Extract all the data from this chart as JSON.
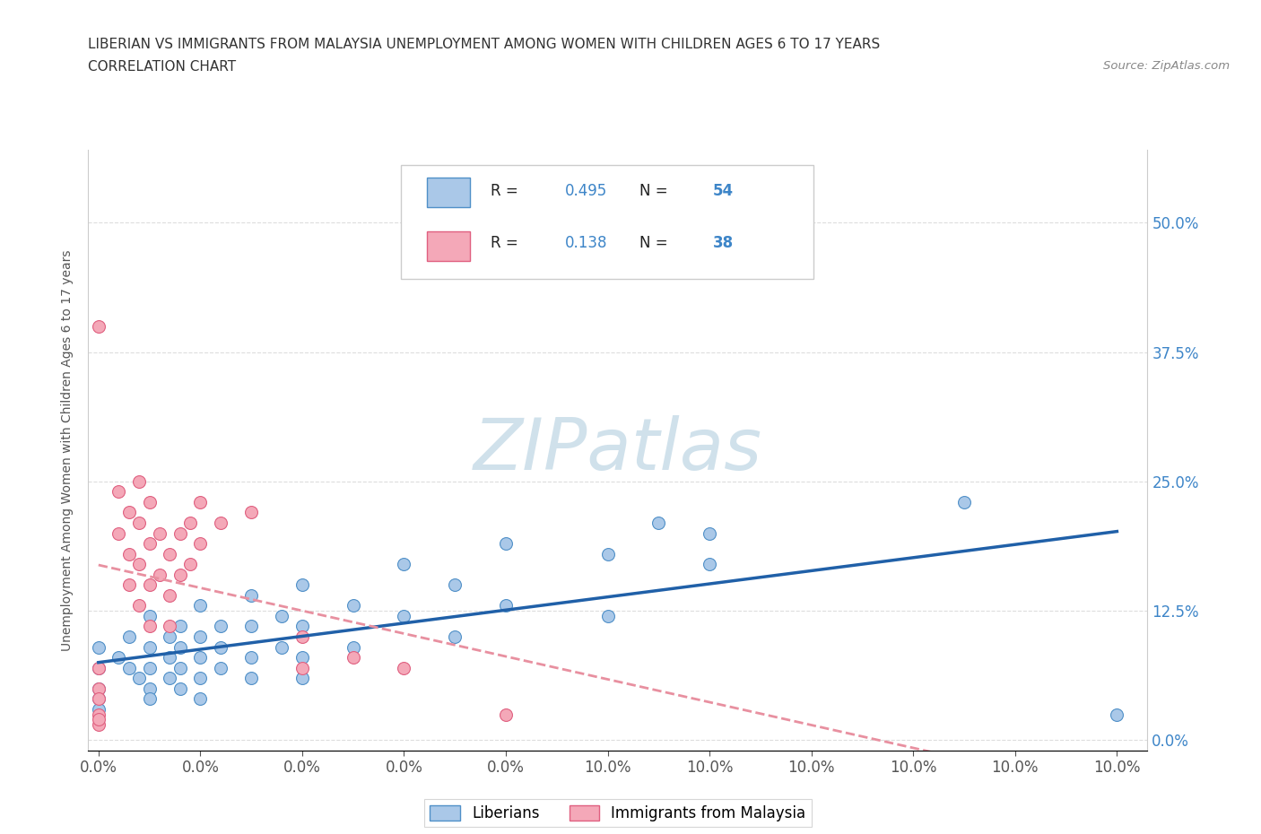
{
  "title_line1": "LIBERIAN VS IMMIGRANTS FROM MALAYSIA UNEMPLOYMENT AMONG WOMEN WITH CHILDREN AGES 6 TO 17 YEARS",
  "title_line2": "CORRELATION CHART",
  "source_text": "Source: ZipAtlas.com",
  "ylabel": "Unemployment Among Women with Children Ages 6 to 17 years",
  "xlim": [
    -0.001,
    0.103
  ],
  "ylim": [
    -0.01,
    0.57
  ],
  "yticks": [
    0.0,
    0.125,
    0.25,
    0.375,
    0.5
  ],
  "ytick_labels": [
    "0.0%",
    "12.5%",
    "25.0%",
    "37.5%",
    "50.0%"
  ],
  "xtick_positions": [
    0.0,
    0.01,
    0.02,
    0.03,
    0.04,
    0.05,
    0.06,
    0.07,
    0.08,
    0.09,
    0.1
  ],
  "xtick_labels_show": {
    "0.0": "0.0%",
    "0.1": "10.0%"
  },
  "liberian_color": "#aac8e8",
  "liberian_edge_color": "#5090c8",
  "malaysia_color": "#f4a8b8",
  "malaysia_edge_color": "#e06080",
  "liberian_line_color": "#2060a8",
  "malaysia_line_color": "#e890a0",
  "watermark_color": "#c8dce8",
  "R_liberian": 0.495,
  "N_liberian": 54,
  "R_malaysia": 0.138,
  "N_malaysia": 38,
  "legend_label_1": "Liberians",
  "legend_label_2": "Immigrants from Malaysia",
  "liberian_scatter": [
    [
      0.0,
      0.09
    ],
    [
      0.0,
      0.07
    ],
    [
      0.0,
      0.05
    ],
    [
      0.0,
      0.04
    ],
    [
      0.0,
      0.03
    ],
    [
      0.002,
      0.08
    ],
    [
      0.003,
      0.1
    ],
    [
      0.003,
      0.07
    ],
    [
      0.004,
      0.06
    ],
    [
      0.005,
      0.12
    ],
    [
      0.005,
      0.09
    ],
    [
      0.005,
      0.07
    ],
    [
      0.005,
      0.05
    ],
    [
      0.005,
      0.04
    ],
    [
      0.007,
      0.1
    ],
    [
      0.007,
      0.08
    ],
    [
      0.007,
      0.06
    ],
    [
      0.008,
      0.11
    ],
    [
      0.008,
      0.09
    ],
    [
      0.008,
      0.07
    ],
    [
      0.008,
      0.05
    ],
    [
      0.01,
      0.13
    ],
    [
      0.01,
      0.1
    ],
    [
      0.01,
      0.08
    ],
    [
      0.01,
      0.06
    ],
    [
      0.01,
      0.04
    ],
    [
      0.012,
      0.11
    ],
    [
      0.012,
      0.09
    ],
    [
      0.012,
      0.07
    ],
    [
      0.015,
      0.14
    ],
    [
      0.015,
      0.11
    ],
    [
      0.015,
      0.08
    ],
    [
      0.015,
      0.06
    ],
    [
      0.018,
      0.12
    ],
    [
      0.018,
      0.09
    ],
    [
      0.02,
      0.15
    ],
    [
      0.02,
      0.11
    ],
    [
      0.02,
      0.08
    ],
    [
      0.02,
      0.06
    ],
    [
      0.025,
      0.13
    ],
    [
      0.025,
      0.09
    ],
    [
      0.03,
      0.17
    ],
    [
      0.03,
      0.12
    ],
    [
      0.035,
      0.15
    ],
    [
      0.035,
      0.1
    ],
    [
      0.04,
      0.19
    ],
    [
      0.04,
      0.13
    ],
    [
      0.05,
      0.18
    ],
    [
      0.05,
      0.12
    ],
    [
      0.055,
      0.21
    ],
    [
      0.06,
      0.2
    ],
    [
      0.06,
      0.17
    ],
    [
      0.085,
      0.23
    ],
    [
      0.1,
      0.025
    ]
  ],
  "malaysia_scatter": [
    [
      0.0,
      0.4
    ],
    [
      0.0,
      0.07
    ],
    [
      0.0,
      0.05
    ],
    [
      0.0,
      0.04
    ],
    [
      0.0,
      0.025
    ],
    [
      0.0,
      0.015
    ],
    [
      0.002,
      0.24
    ],
    [
      0.002,
      0.2
    ],
    [
      0.003,
      0.22
    ],
    [
      0.003,
      0.18
    ],
    [
      0.003,
      0.15
    ],
    [
      0.004,
      0.25
    ],
    [
      0.004,
      0.21
    ],
    [
      0.004,
      0.17
    ],
    [
      0.004,
      0.13
    ],
    [
      0.005,
      0.23
    ],
    [
      0.005,
      0.19
    ],
    [
      0.005,
      0.15
    ],
    [
      0.005,
      0.11
    ],
    [
      0.006,
      0.2
    ],
    [
      0.006,
      0.16
    ],
    [
      0.007,
      0.18
    ],
    [
      0.007,
      0.14
    ],
    [
      0.007,
      0.11
    ],
    [
      0.008,
      0.2
    ],
    [
      0.008,
      0.16
    ],
    [
      0.009,
      0.21
    ],
    [
      0.009,
      0.17
    ],
    [
      0.01,
      0.23
    ],
    [
      0.01,
      0.19
    ],
    [
      0.012,
      0.21
    ],
    [
      0.015,
      0.22
    ],
    [
      0.02,
      0.1
    ],
    [
      0.02,
      0.07
    ],
    [
      0.025,
      0.08
    ],
    [
      0.03,
      0.07
    ],
    [
      0.04,
      0.025
    ],
    [
      0.0,
      0.02
    ]
  ]
}
